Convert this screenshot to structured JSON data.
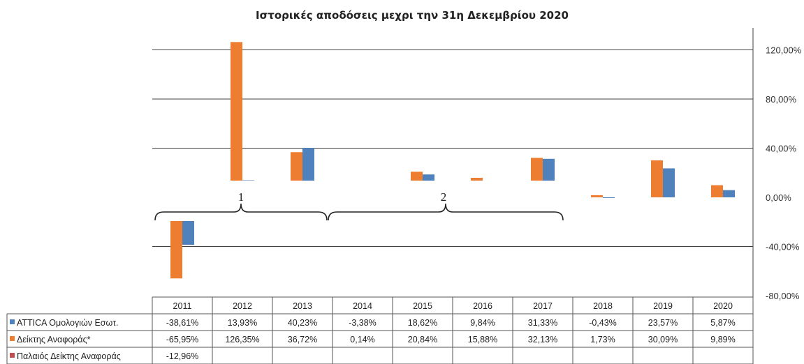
{
  "colors": {
    "attica": "#4f81bd",
    "reference": "#ed7d31",
    "old_reference": "#c0504d",
    "grid": "#404040"
  },
  "chart_data": {
    "type": "bar",
    "title": "Ιστορικές αποδόσεις μεχρι την 31η Δεκεμβρίου 2020",
    "categories": [
      "2011",
      "2012",
      "2013",
      "2014",
      "2015",
      "2016",
      "2017",
      "2018",
      "2019",
      "2020"
    ],
    "ylim": [
      -80,
      120
    ],
    "yticks": [
      "120,00%",
      "80,00%",
      "40,00%",
      "0,00%",
      "-40,00%",
      "-80,00%"
    ],
    "grid": true,
    "legend": "table-left",
    "series": [
      {
        "name": "Δείκτης Αναφοράς*",
        "color_key": "reference",
        "values": [
          -65.95,
          126.35,
          36.72,
          0.14,
          20.84,
          15.88,
          32.13,
          1.73,
          30.09,
          9.89
        ],
        "labels": [
          "-65,95%",
          "126,35%",
          "36,72%",
          "0,14%",
          "20,84%",
          "15,88%",
          "32,13%",
          "1,73%",
          "30,09%",
          "9,89%"
        ]
      },
      {
        "name": "ATTICA Ομολογιών Εσωτ.",
        "color_key": "attica",
        "values": [
          -38.61,
          13.93,
          40.23,
          -3.38,
          18.62,
          9.84,
          31.33,
          -0.43,
          23.57,
          5.87
        ],
        "labels": [
          "-38,61%",
          "13,93%",
          "40,23%",
          "-3,38%",
          "18,62%",
          "9,84%",
          "31,33%",
          "-0,43%",
          "23,57%",
          "5,87%"
        ]
      },
      {
        "name": "Παλαιός Δείκτης Αναφοράς",
        "color_key": "old_reference",
        "values": [
          -12.96,
          null,
          null,
          null,
          null,
          null,
          null,
          null,
          null,
          null
        ],
        "labels": [
          "-12,96%",
          "",
          "",
          "",
          "",
          "",
          "",
          "",
          "",
          ""
        ]
      }
    ],
    "table_order": [
      1,
      0,
      2
    ],
    "annotations": [
      "1",
      "2"
    ]
  }
}
